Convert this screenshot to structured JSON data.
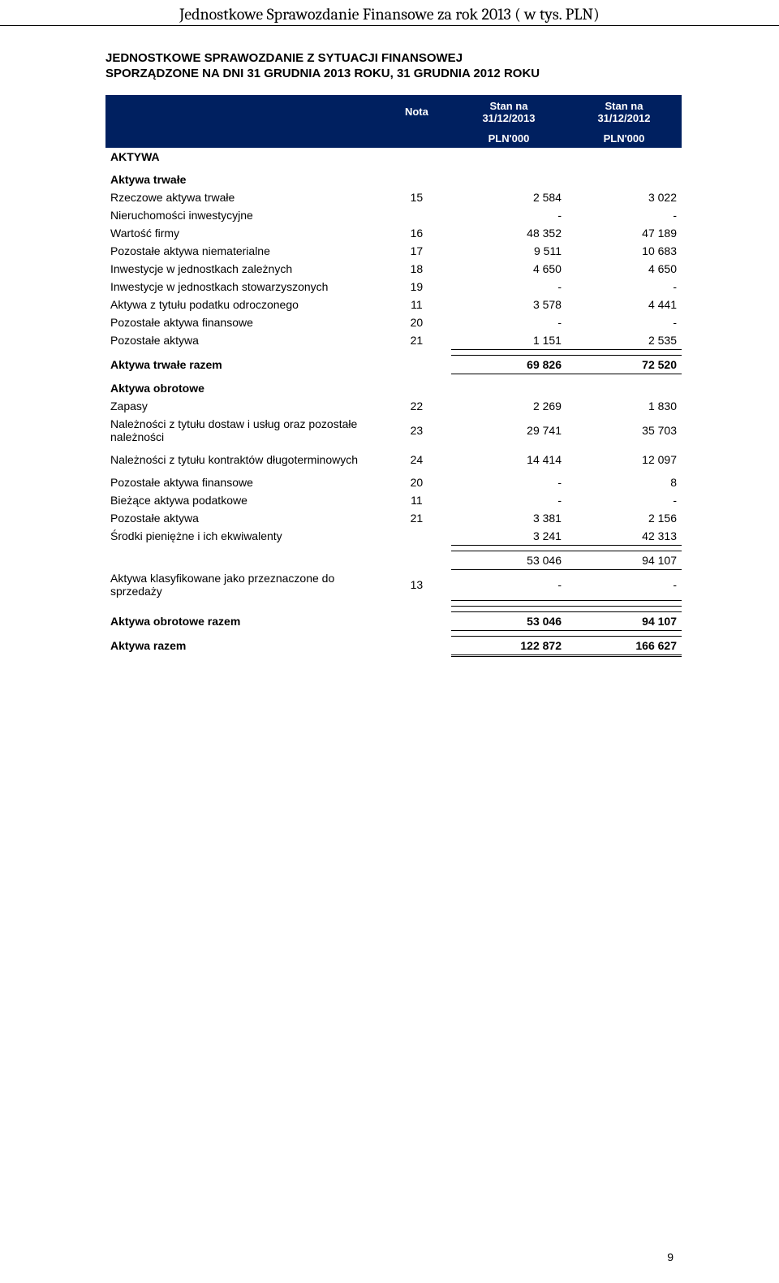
{
  "doc_header": "Jednostkowe Sprawozdanie Finansowe za rok 2013 ( w tys. PLN)",
  "title_line1": "JEDNOSTKOWE SPRAWOZDANIE Z SYTUACJI FINANSOWEJ",
  "title_line2": "SPORZĄDZONE NA DNI 31 GRUDNIA 2013 ROKU, 31 GRUDNIA 2012 ROKU",
  "col_nota": "Nota",
  "col_h1a": "Stan na",
  "col_h1b": "31/12/2013",
  "col_h2a": "Stan na",
  "col_h2b": "31/12/2012",
  "unit1": "PLN'000",
  "unit2": "PLN'000",
  "aktywa": "AKTYWA",
  "sec_trwale": "Aktywa trwałe",
  "rows_trwale": [
    {
      "label": "Rzeczowe aktywa trwałe",
      "nota": "15",
      "v1": "2 584",
      "v2": "3 022"
    },
    {
      "label": "Nieruchomości inwestycyjne",
      "nota": "",
      "v1": "-",
      "v2": "-"
    },
    {
      "label": "Wartość firmy",
      "nota": "16",
      "v1": "48 352",
      "v2": "47 189"
    },
    {
      "label": "Pozostałe aktywa niematerialne",
      "nota": "17",
      "v1": "9 511",
      "v2": "10 683"
    },
    {
      "label": "Inwestycje w jednostkach zależnych",
      "nota": "18",
      "v1": "4 650",
      "v2": "4 650"
    },
    {
      "label": "Inwestycje w jednostkach stowarzyszonych",
      "nota": "19",
      "v1": "-",
      "v2": "-"
    },
    {
      "label": "Aktywa z tytułu podatku odroczonego",
      "nota": "11",
      "v1": "3 578",
      "v2": "4 441"
    },
    {
      "label": "Pozostałe aktywa finansowe",
      "nota": "20",
      "v1": "-",
      "v2": "-"
    },
    {
      "label": "Pozostałe aktywa",
      "nota": "21",
      "v1": "1 151",
      "v2": "2 535"
    }
  ],
  "trwale_total_label": "Aktywa trwałe razem",
  "trwale_total_v1": "69 826",
  "trwale_total_v2": "72 520",
  "sec_obrotowe": "Aktywa obrotowe",
  "rows_obrotowe_a": [
    {
      "label": "Zapasy",
      "nota": "22",
      "v1": "2 269",
      "v2": "1 830"
    },
    {
      "label": "Należności z tytułu dostaw i usług oraz pozostałe należności",
      "nota": "23",
      "v1": "29 741",
      "v2": "35 703"
    }
  ],
  "rows_obrotowe_b": [
    {
      "label": "Należności z tytułu kontraktów długoterminowych",
      "nota": "24",
      "v1": "14 414",
      "v2": "12 097"
    }
  ],
  "rows_obrotowe_c": [
    {
      "label": "Pozostałe aktywa finansowe",
      "nota": "20",
      "v1": "-",
      "v2": "8"
    },
    {
      "label": "Bieżące aktywa podatkowe",
      "nota": "11",
      "v1": "-",
      "v2": "-"
    },
    {
      "label": "Pozostałe aktywa",
      "nota": "21",
      "v1": "3 381",
      "v2": "2 156"
    },
    {
      "label": "Środki pieniężne i ich ekwiwalenty",
      "nota": "",
      "v1": "3 241",
      "v2": "42 313"
    }
  ],
  "obrotowe_subtotal_v1": "53 046",
  "obrotowe_subtotal_v2": "94 107",
  "klasyfik_label": "Aktywa klasyfikowane jako przeznaczone do sprzedaży",
  "klasyfik_nota": "13",
  "klasyfik_v1": "-",
  "klasyfik_v2": "-",
  "obrotowe_total_label": "Aktywa obrotowe razem",
  "obrotowe_total_v1": "53 046",
  "obrotowe_total_v2": "94 107",
  "aktywa_razem_label": "Aktywa razem",
  "aktywa_razem_v1": "122 872",
  "aktywa_razem_v2": "166 627",
  "page_number": "9"
}
